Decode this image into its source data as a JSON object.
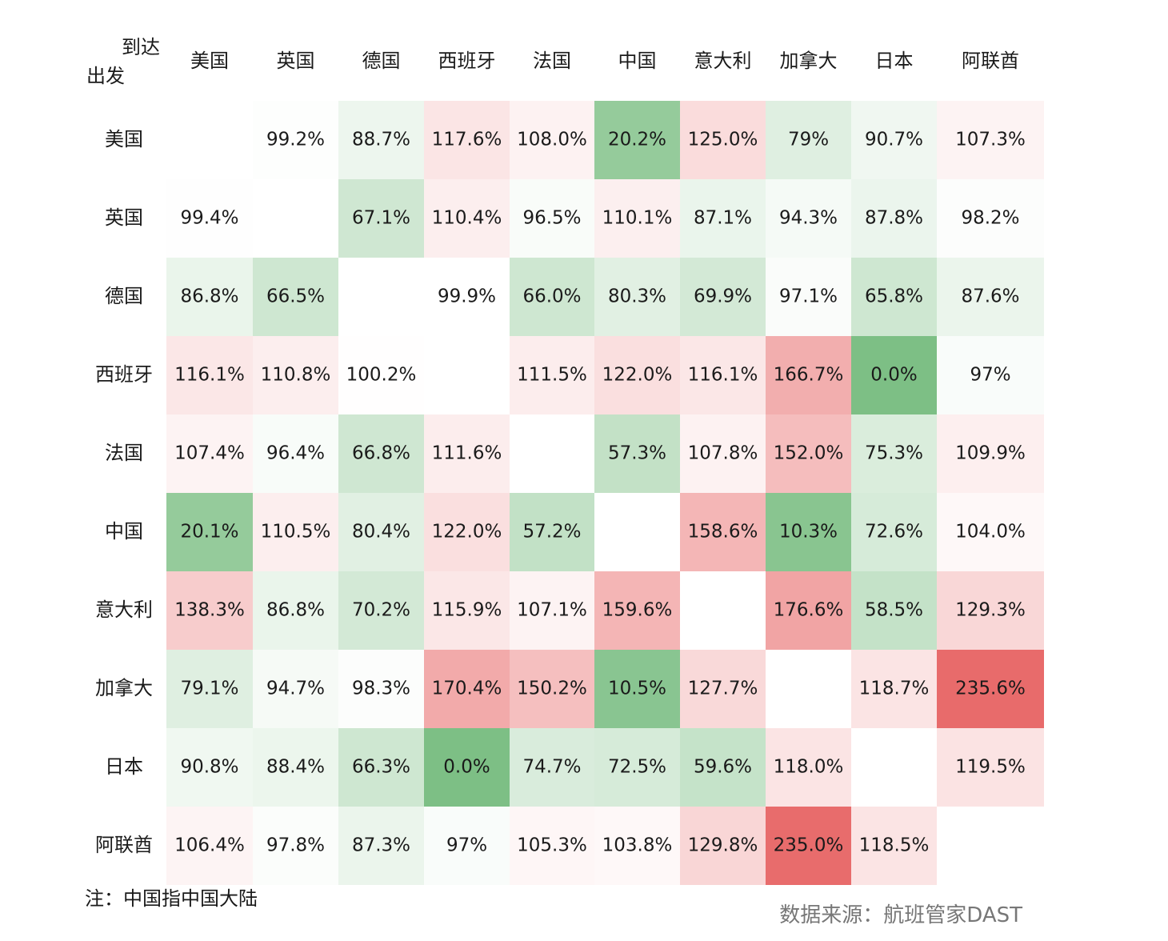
{
  "corner": {
    "to_label": "到达",
    "from_label": "出发"
  },
  "note": "注：中国指中国大陆",
  "source": "数据来源：航班管家DAST",
  "colors": {
    "high": "#e86b6b",
    "low": "#7dbf85",
    "neutral": "#ffffff"
  },
  "chart_data": {
    "type": "heatmap",
    "x_axis_label": "到达",
    "y_axis_label": "出发",
    "columns": [
      "美国",
      "英国",
      "德国",
      "西班牙",
      "法国",
      "中国",
      "意大利",
      "加拿大",
      "日本",
      "阿联酋"
    ],
    "rows": [
      "美国",
      "英国",
      "德国",
      "西班牙",
      "法国",
      "中国",
      "意大利",
      "加拿大",
      "日本",
      "阿联酋"
    ],
    "labels": [
      [
        null,
        "99.2%",
        "88.7%",
        "117.6%",
        "108.0%",
        "20.2%",
        "125.0%",
        "79%",
        "90.7%",
        "107.3%"
      ],
      [
        "99.4%",
        null,
        "67.1%",
        "110.4%",
        "96.5%",
        "110.1%",
        "87.1%",
        "94.3%",
        "87.8%",
        "98.2%"
      ],
      [
        "86.8%",
        "66.5%",
        null,
        "99.9%",
        "66.0%",
        "80.3%",
        "69.9%",
        "97.1%",
        "65.8%",
        "87.6%"
      ],
      [
        "116.1%",
        "110.8%",
        "100.2%",
        null,
        "111.5%",
        "122.0%",
        "116.1%",
        "166.7%",
        "0.0%",
        "97%"
      ],
      [
        "107.4%",
        "96.4%",
        "66.8%",
        "111.6%",
        null,
        "57.3%",
        "107.8%",
        "152.0%",
        "75.3%",
        "109.9%"
      ],
      [
        "20.1%",
        "110.5%",
        "80.4%",
        "122.0%",
        "57.2%",
        null,
        "158.6%",
        "10.3%",
        "72.6%",
        "104.0%"
      ],
      [
        "138.3%",
        "86.8%",
        "70.2%",
        "115.9%",
        "107.1%",
        "159.6%",
        null,
        "176.6%",
        "58.5%",
        "129.3%"
      ],
      [
        "79.1%",
        "94.7%",
        "98.3%",
        "170.4%",
        "150.2%",
        "10.5%",
        "127.7%",
        null,
        "118.7%",
        "235.6%"
      ],
      [
        "90.8%",
        "88.4%",
        "66.3%",
        "0.0%",
        "74.7%",
        "72.5%",
        "59.6%",
        "118.0%",
        null,
        "119.5%"
      ],
      [
        "106.4%",
        "97.8%",
        "87.3%",
        "97%",
        "105.3%",
        "103.8%",
        "129.8%",
        "235.0%",
        "118.5%",
        null
      ]
    ],
    "values": [
      [
        null,
        99.2,
        88.7,
        117.6,
        108.0,
        20.2,
        125.0,
        79,
        90.7,
        107.3
      ],
      [
        99.4,
        null,
        67.1,
        110.4,
        96.5,
        110.1,
        87.1,
        94.3,
        87.8,
        98.2
      ],
      [
        86.8,
        66.5,
        null,
        99.9,
        66.0,
        80.3,
        69.9,
        97.1,
        65.8,
        87.6
      ],
      [
        116.1,
        110.8,
        100.2,
        null,
        111.5,
        122.0,
        116.1,
        166.7,
        0.0,
        97
      ],
      [
        107.4,
        96.4,
        66.8,
        111.6,
        null,
        57.3,
        107.8,
        152.0,
        75.3,
        109.9
      ],
      [
        20.1,
        110.5,
        80.4,
        122.0,
        57.2,
        null,
        158.6,
        10.3,
        72.6,
        104.0
      ],
      [
        138.3,
        86.8,
        70.2,
        115.9,
        107.1,
        159.6,
        null,
        176.6,
        58.5,
        129.3
      ],
      [
        79.1,
        94.7,
        98.3,
        170.4,
        150.2,
        10.5,
        127.7,
        null,
        118.7,
        235.6
      ],
      [
        90.8,
        88.4,
        66.3,
        0.0,
        74.7,
        72.5,
        59.6,
        118.0,
        null,
        119.5
      ],
      [
        106.4,
        97.8,
        87.3,
        97,
        105.3,
        103.8,
        129.8,
        235.0,
        118.5,
        null
      ]
    ]
  }
}
